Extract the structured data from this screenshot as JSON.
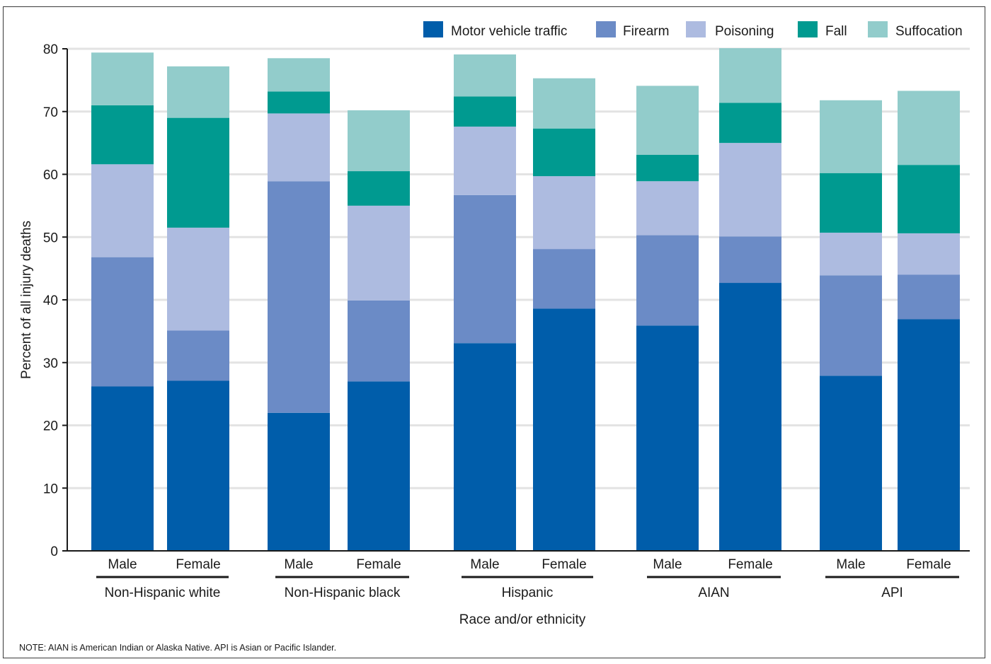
{
  "chart_data": {
    "type": "bar",
    "stacked": true,
    "xlabel": "Race and/or ethnicity",
    "ylabel": "Percent of all injury deaths",
    "ylim": [
      0,
      80
    ],
    "yticks": [
      0,
      10,
      20,
      30,
      40,
      50,
      60,
      70,
      80
    ],
    "grid": true,
    "legend_position": "top-right",
    "groups": [
      "Non-Hispanic white",
      "Non-Hispanic black",
      "Hispanic",
      "AIAN",
      "API"
    ],
    "subcategories": [
      "Male",
      "Female"
    ],
    "categories": [
      "Non-Hispanic white Male",
      "Non-Hispanic white Female",
      "Non-Hispanic black Male",
      "Non-Hispanic black Female",
      "Hispanic Male",
      "Hispanic Female",
      "AIAN Male",
      "AIAN Female",
      "API Male",
      "API Female"
    ],
    "series": [
      {
        "name": "Motor vehicle traffic",
        "color": "#005daa",
        "values": [
          26.2,
          27.1,
          22.0,
          27.0,
          33.1,
          38.6,
          35.9,
          42.7,
          27.9,
          36.9
        ]
      },
      {
        "name": "Firearm",
        "color": "#6b8bc6",
        "values": [
          20.6,
          8.0,
          36.9,
          12.9,
          23.6,
          9.5,
          14.4,
          7.4,
          16.0,
          7.1
        ]
      },
      {
        "name": "Poisoning",
        "color": "#adbbe0",
        "values": [
          14.8,
          16.4,
          10.8,
          15.1,
          10.9,
          11.6,
          8.6,
          14.9,
          6.8,
          6.6
        ]
      },
      {
        "name": "Fall",
        "color": "#009a90",
        "values": [
          9.4,
          17.5,
          3.5,
          5.5,
          4.8,
          7.6,
          4.2,
          6.4,
          9.5,
          10.9
        ]
      },
      {
        "name": "Suffocation",
        "color": "#92cccb",
        "values": [
          8.4,
          8.2,
          5.3,
          9.7,
          6.7,
          8.0,
          11.0,
          8.7,
          11.6,
          11.8
        ]
      }
    ]
  },
  "note": "NOTE: AIAN is American Indian or Alaska Native. API is Asian or Pacific Islander."
}
